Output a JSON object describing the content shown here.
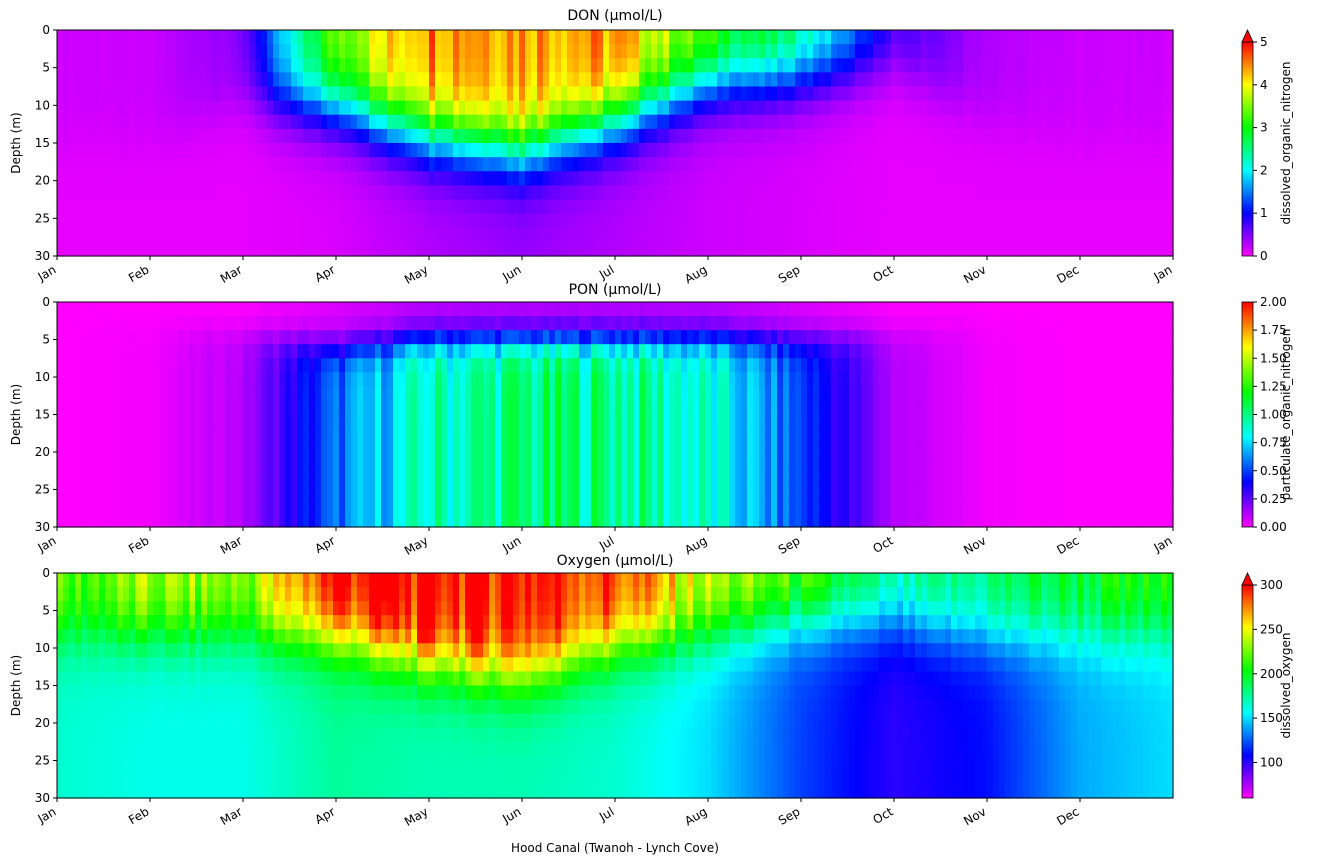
{
  "figure": {
    "xlabel": "Hood Canal (Twanoh - Lynch Cove)"
  },
  "chart_data": [
    {
      "type": "heatmap",
      "title": "DON (µmol/L)",
      "ylabel": "Depth (m)",
      "ylim": [
        0,
        30
      ],
      "y_inverted": true,
      "yticks": [
        0,
        5,
        10,
        15,
        20,
        25,
        30
      ],
      "xticks": [
        "Jan",
        "Feb",
        "Mar",
        "Apr",
        "May",
        "Jun",
        "Jul",
        "Aug",
        "Sep",
        "Oct",
        "Nov",
        "Dec",
        "Jan"
      ],
      "colorbar": {
        "label": "dissolved_organic_nitrogen",
        "vmin": 0,
        "vmax": 5,
        "ticks": [
          "0",
          "1",
          "2",
          "3",
          "4",
          "5"
        ],
        "extend": "max",
        "colormap": "gist_rainbow_r"
      },
      "profile_months": [
        0,
        1,
        2,
        3,
        4,
        5,
        6,
        7,
        8,
        9,
        10,
        11,
        12
      ],
      "surface": [
        0.2,
        0.2,
        0.5,
        3.5,
        4.6,
        4.5,
        4.4,
        3.3,
        2.6,
        0.8,
        0.3,
        0.2,
        0.2
      ],
      "bottom": [
        0.1,
        0.1,
        0.1,
        0.15,
        0.3,
        0.4,
        0.3,
        0.2,
        0.15,
        0.1,
        0.1,
        0.1,
        0.1
      ],
      "mixed_depth": [
        15,
        15,
        9,
        10,
        14,
        16,
        12,
        7,
        6,
        4,
        12,
        15,
        15
      ]
    },
    {
      "type": "heatmap",
      "title": "PON (µmol/L)",
      "ylabel": "Depth (m)",
      "ylim": [
        0,
        30
      ],
      "y_inverted": true,
      "yticks": [
        0,
        5,
        10,
        15,
        20,
        25,
        30
      ],
      "xticks": [
        "Jan",
        "Feb",
        "Mar",
        "Apr",
        "May",
        "Jun",
        "Jul",
        "Aug",
        "Sep",
        "Oct",
        "Nov",
        "Dec",
        "Jan"
      ],
      "colorbar": {
        "label": "particulate_organic_nitrogen",
        "vmin": 0,
        "vmax": 2,
        "ticks": [
          "0.00",
          "0.25",
          "0.50",
          "0.75",
          "1.00",
          "1.25",
          "1.50",
          "1.75",
          "2.00"
        ],
        "extend": "neither",
        "colormap": "gist_rainbow_r"
      },
      "profile_months": [
        0,
        1,
        2,
        3,
        4,
        5,
        6,
        7,
        8,
        9,
        10,
        11,
        12
      ],
      "surface": [
        0.0,
        0.0,
        0.0,
        0.05,
        0.1,
        0.1,
        0.1,
        0.1,
        0.05,
        0.0,
        0.0,
        0.0,
        0.0
      ],
      "deep": [
        0.0,
        0.02,
        0.12,
        0.55,
        0.9,
        1.0,
        1.0,
        0.85,
        0.5,
        0.12,
        0.02,
        0.0,
        0.0
      ],
      "mixed_depth": [
        3,
        3,
        4,
        6,
        5,
        5,
        5,
        5,
        5,
        4,
        3,
        3,
        3
      ]
    },
    {
      "type": "heatmap",
      "title": "Oxygen (µmol/L)",
      "ylabel": "Depth (m)",
      "ylim": [
        0,
        30
      ],
      "y_inverted": true,
      "yticks": [
        0,
        5,
        10,
        15,
        20,
        25,
        30
      ],
      "xticks": [
        "Jan",
        "Feb",
        "Mar",
        "Apr",
        "May",
        "Jun",
        "Jul",
        "Aug",
        "Sep",
        "Oct",
        "Nov",
        "Dec"
      ],
      "colorbar": {
        "label": "dissolved_oxygen",
        "vmin": 60,
        "vmax": 300,
        "ticks": [
          "100",
          "150",
          "200",
          "250",
          "300"
        ],
        "extend": "max",
        "colormap": "gist_rainbow_r"
      },
      "profile_months": [
        0,
        1,
        2,
        3,
        4,
        5,
        6,
        7,
        8,
        9,
        10,
        11,
        12
      ],
      "surface": [
        215,
        235,
        230,
        305,
        305,
        300,
        290,
        240,
        220,
        170,
        185,
        200,
        205
      ],
      "bottom": [
        165,
        160,
        160,
        175,
        170,
        170,
        165,
        150,
        120,
        100,
        110,
        140,
        150
      ],
      "mixed_depth": [
        8,
        8,
        8,
        9,
        12,
        14,
        10,
        8,
        6,
        6,
        8,
        8,
        8
      ]
    }
  ]
}
